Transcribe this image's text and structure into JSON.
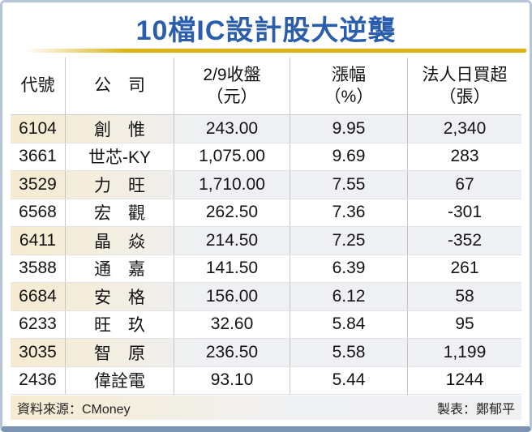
{
  "title": "10檔IC設計股大逆襲",
  "colors": {
    "title_blue": "#2b5dad",
    "gold": "#ddb116",
    "frame_border": "#b6c4d8",
    "frame_bottom": "#7b94b4",
    "stripe_cream": "#f6ebd1",
    "stripe_gray": "#eef0f4",
    "grid": "#c6c6c6"
  },
  "table": {
    "headers": [
      {
        "line1": "代號",
        "line2": ""
      },
      {
        "line1": "公　司",
        "line2": ""
      },
      {
        "line1": "2/9收盤",
        "line2": "（元）"
      },
      {
        "line1": "漲幅",
        "line2": "（%）"
      },
      {
        "line1": "法人日買超",
        "line2": "（張）"
      }
    ],
    "rows": [
      {
        "code": "6104",
        "company": "創　惟",
        "close": "243.00",
        "change": "9.95",
        "net_buy": "2,340"
      },
      {
        "code": "3661",
        "company": "世芯-KY",
        "close": "1,075.00",
        "change": "9.69",
        "net_buy": "283"
      },
      {
        "code": "3529",
        "company": "力　旺",
        "close": "1,710.00",
        "change": "7.55",
        "net_buy": "67"
      },
      {
        "code": "6568",
        "company": "宏　觀",
        "close": "262.50",
        "change": "7.36",
        "net_buy": "-301"
      },
      {
        "code": "6411",
        "company": "晶　焱",
        "close": "214.50",
        "change": "7.25",
        "net_buy": "-352"
      },
      {
        "code": "3588",
        "company": "通　嘉",
        "close": "141.50",
        "change": "6.39",
        "net_buy": "261"
      },
      {
        "code": "6684",
        "company": "安　格",
        "close": "156.00",
        "change": "6.12",
        "net_buy": "58"
      },
      {
        "code": "6233",
        "company": "旺　玖",
        "close": "32.60",
        "change": "5.84",
        "net_buy": "95"
      },
      {
        "code": "3035",
        "company": "智　原",
        "close": "236.50",
        "change": "5.58",
        "net_buy": "1,199"
      },
      {
        "code": "2436",
        "company": "偉詮電",
        "close": "93.10",
        "change": "5.44",
        "net_buy": "1244"
      }
    ]
  },
  "footer": {
    "source": "資料來源：CMoney",
    "credit": "製表：鄭郁平"
  },
  "chart_data": {
    "type": "table",
    "title": "10檔IC設計股大逆襲",
    "columns": [
      "代號",
      "公司",
      "2/9收盤（元）",
      "漲幅（%）",
      "法人日買超（張）"
    ],
    "rows": [
      [
        "6104",
        "創惟",
        243.0,
        9.95,
        2340
      ],
      [
        "3661",
        "世芯-KY",
        1075.0,
        9.69,
        283
      ],
      [
        "3529",
        "力旺",
        1710.0,
        7.55,
        67
      ],
      [
        "6568",
        "宏觀",
        262.5,
        7.36,
        -301
      ],
      [
        "6411",
        "晶焱",
        214.5,
        7.25,
        -352
      ],
      [
        "3588",
        "通嘉",
        141.5,
        6.39,
        261
      ],
      [
        "6684",
        "安格",
        156.0,
        6.12,
        58
      ],
      [
        "6233",
        "旺玖",
        32.6,
        5.84,
        95
      ],
      [
        "3035",
        "智原",
        236.5,
        5.58,
        1199
      ],
      [
        "2436",
        "偉詮電",
        93.1,
        5.44,
        1244
      ]
    ],
    "source": "CMoney",
    "credit": "鄭郁平"
  }
}
